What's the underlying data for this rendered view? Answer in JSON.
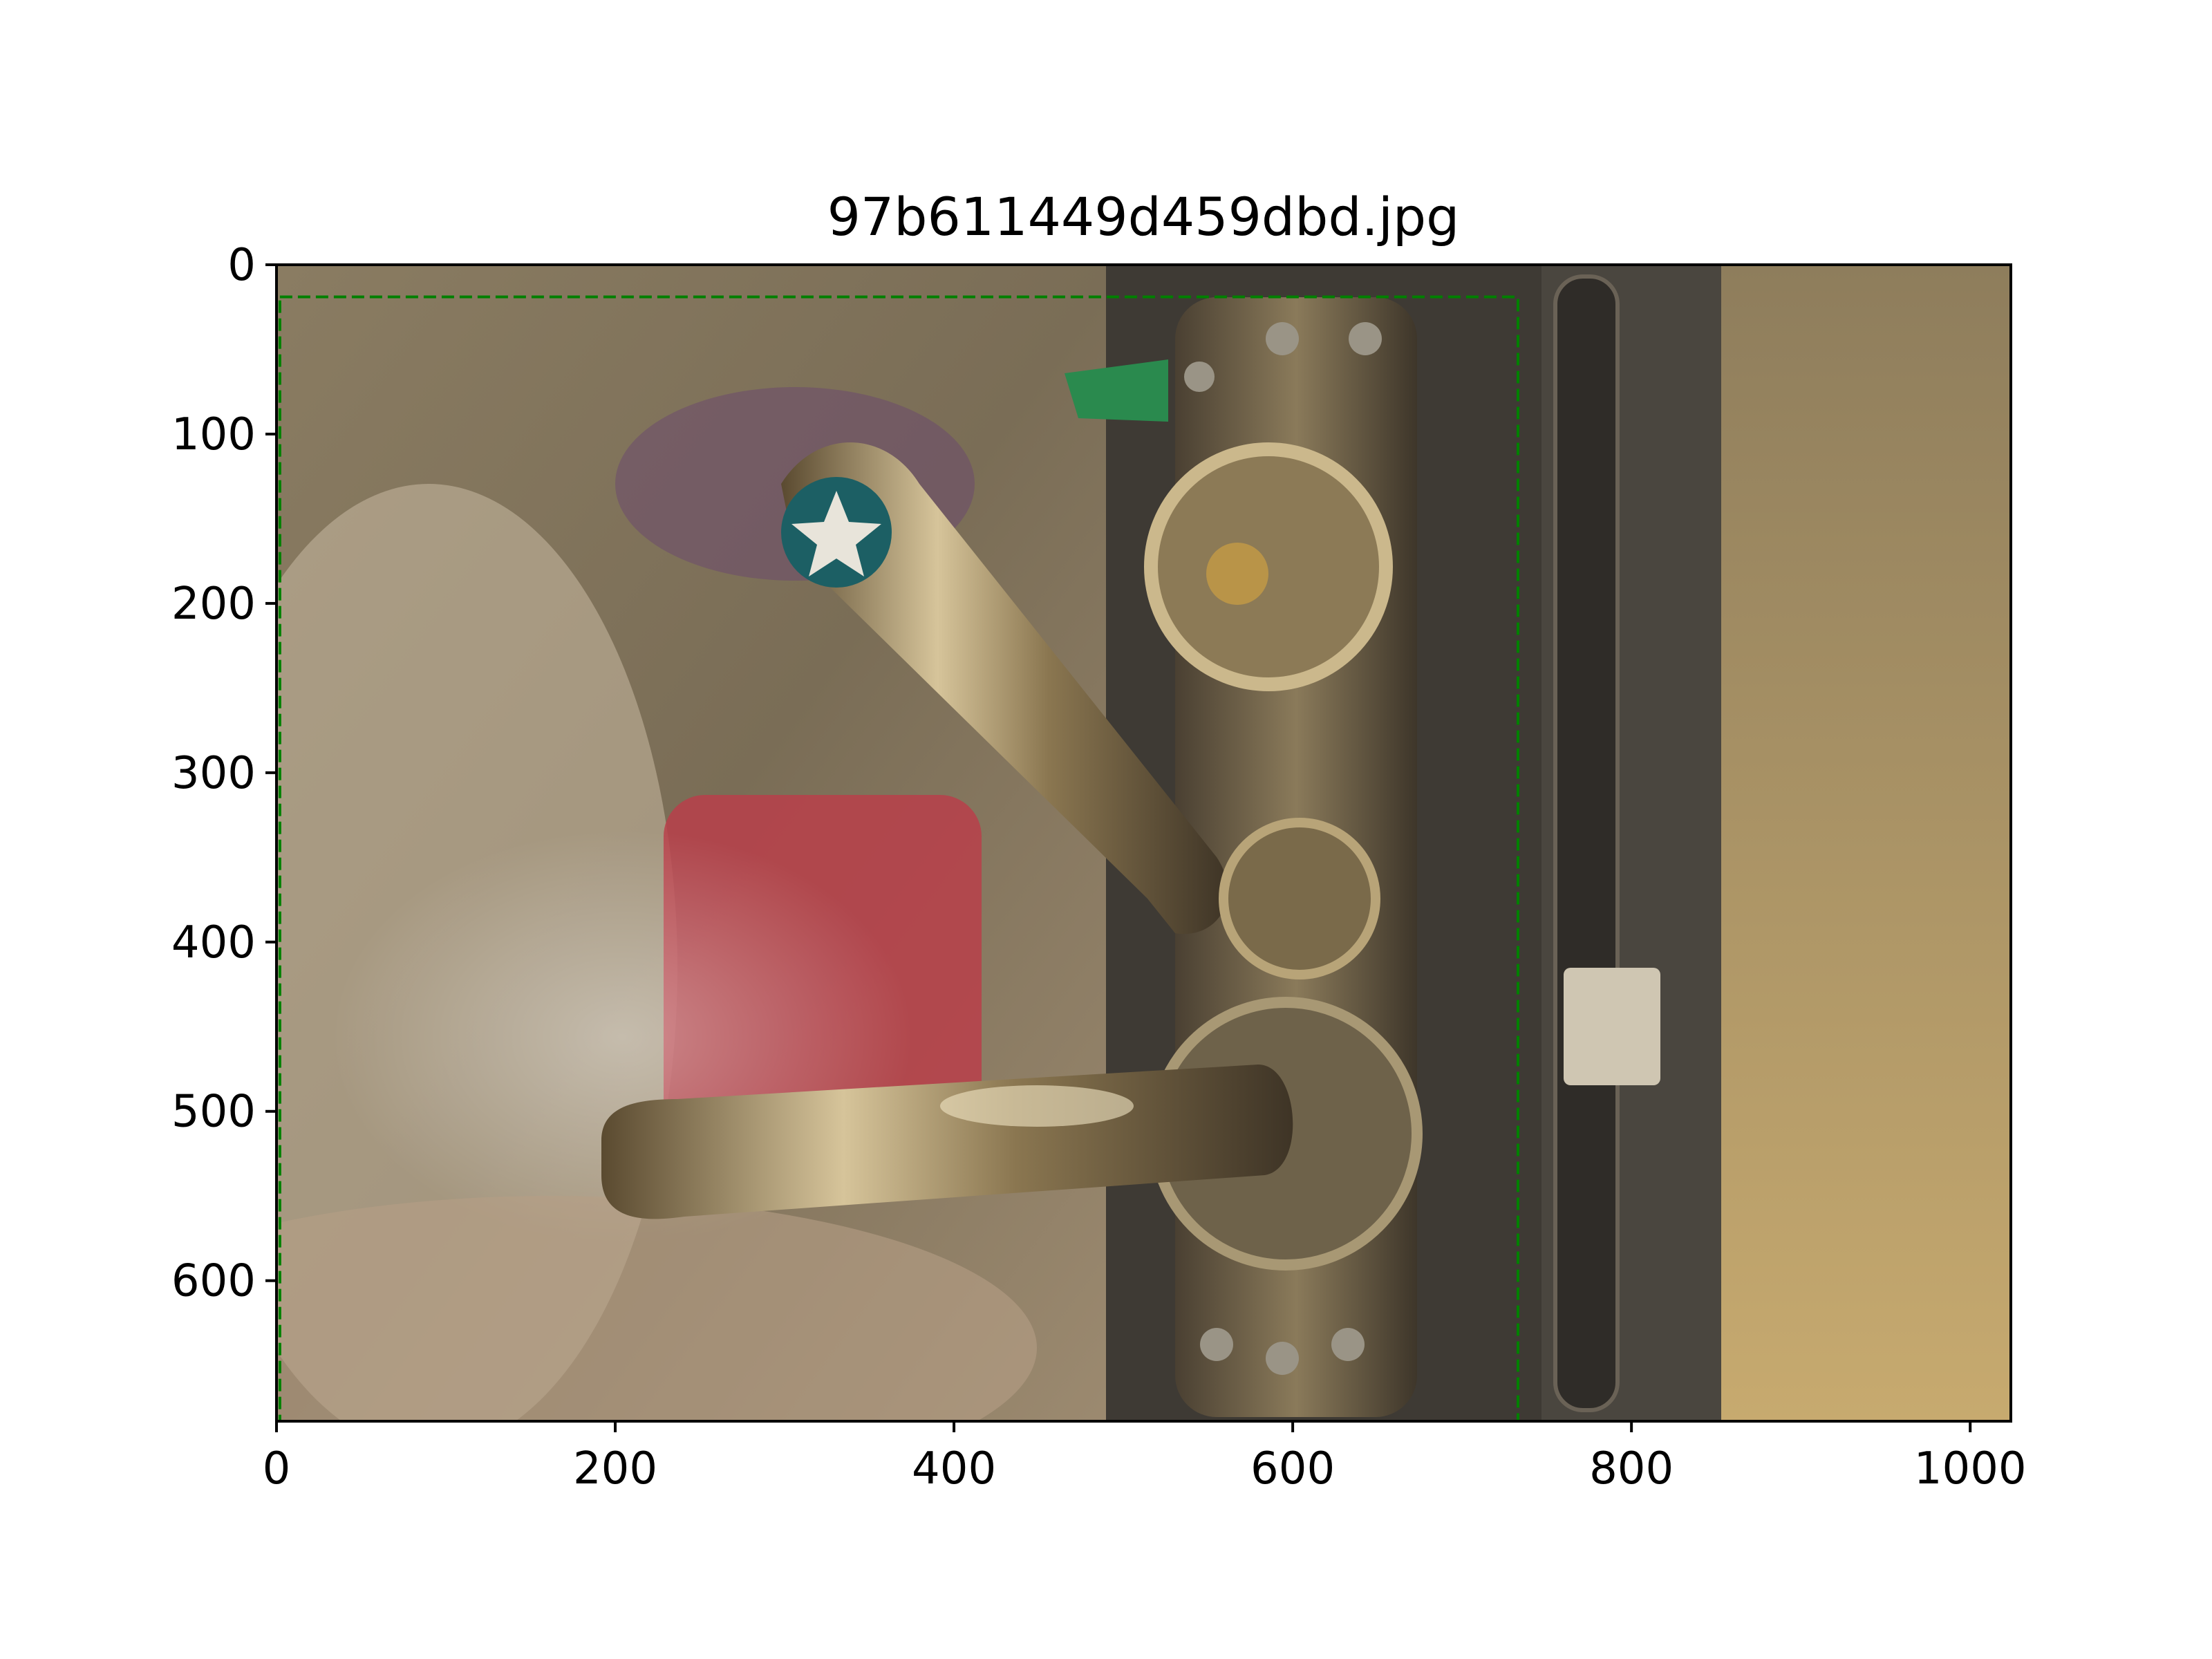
{
  "chart_data": {
    "type": "image",
    "title": "97b611449d459dbd.jpg",
    "xlabel": "",
    "ylabel": "",
    "xlim": [
      0,
      1024
    ],
    "ylim": [
      683,
      0
    ],
    "x_ticks": [
      0,
      200,
      400,
      600,
      800,
      1000
    ],
    "y_ticks": [
      0,
      100,
      200,
      300,
      400,
      500,
      600
    ],
    "x_tick_labels": [
      "0",
      "200",
      "400",
      "600",
      "800",
      "1000"
    ],
    "y_tick_labels": [
      "0",
      "100",
      "200",
      "300",
      "400",
      "500",
      "600"
    ],
    "grid": false,
    "annotations": [
      {
        "type": "dashed-rectangle",
        "color": "#008000",
        "x0": 2,
        "y0": 19,
        "x1": 733,
        "y1": 683
      }
    ],
    "photo_colors": {
      "background_left": "#8e7d5f",
      "background_right": "#c2a56f",
      "door_frame": "#3e3a34",
      "handle_metal": "#c9b48a",
      "red_poster": "#b8404a",
      "star_badge": "#1c5f64"
    }
  }
}
